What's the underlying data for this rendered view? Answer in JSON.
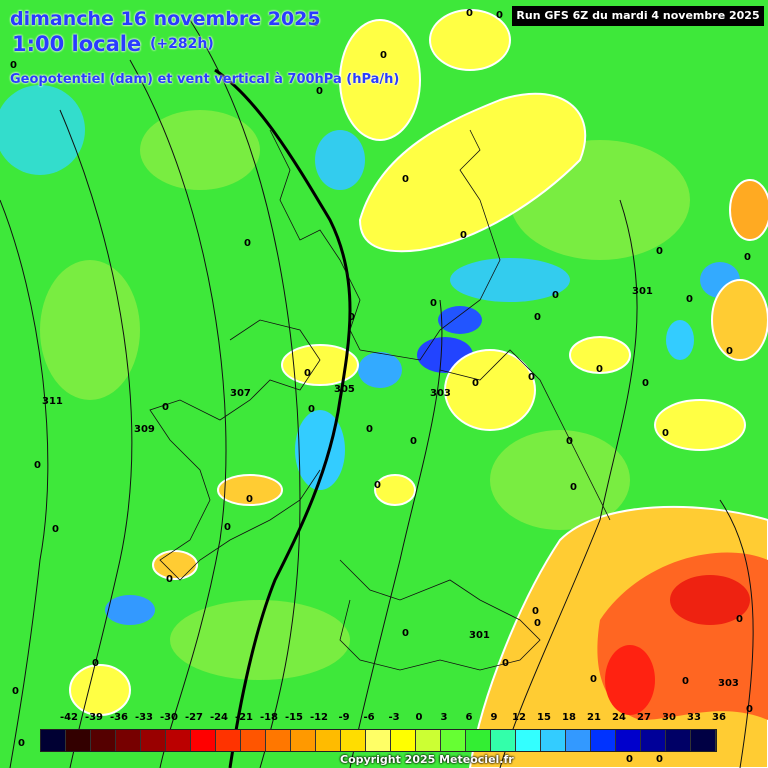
{
  "header": {
    "date": "dimanche 16 novembre 2025",
    "time": "1:00 locale",
    "offset": "(+282h)",
    "variable": "Geopotentiel (dam) et vent vertical à 700hPa (hPa/h)",
    "run": "Run GFS 6Z du mardi 4 novembre 2025"
  },
  "legend": {
    "labels": [
      "-42",
      "-39",
      "-36",
      "-33",
      "-30",
      "-27",
      "-24",
      "-21",
      "-18",
      "-15",
      "-12",
      "-9",
      "-6",
      "-3",
      "0",
      "3",
      "6",
      "9",
      "12",
      "15",
      "18",
      "21",
      "24",
      "27",
      "30",
      "33",
      "36"
    ],
    "colors": [
      "#000033",
      "#330000",
      "#550000",
      "#770000",
      "#990000",
      "#bb0000",
      "#ff0000",
      "#ff3300",
      "#ff5500",
      "#ff7700",
      "#ff9900",
      "#ffbb00",
      "#ffdd00",
      "#ffff66",
      "#ffff00",
      "#ccff33",
      "#66ff33",
      "#33ee33",
      "#33ffaa",
      "#33ffff",
      "#33ccff",
      "#3399ff",
      "#0033ff",
      "#0000cc",
      "#000099",
      "#000066",
      "#000044"
    ]
  },
  "geopotential_labels": [
    "311",
    "309",
    "307",
    "305",
    "303",
    "301",
    "303",
    "301"
  ],
  "zero_label": "0",
  "footer": {
    "copyright": "Copyright 2025 Meteociel.fr"
  },
  "colors": {
    "base_green": "#3ee83a",
    "yellow": "#ffff33",
    "cyan": "#33ffff",
    "blue": "#3366ff",
    "red": "#ff2200"
  }
}
